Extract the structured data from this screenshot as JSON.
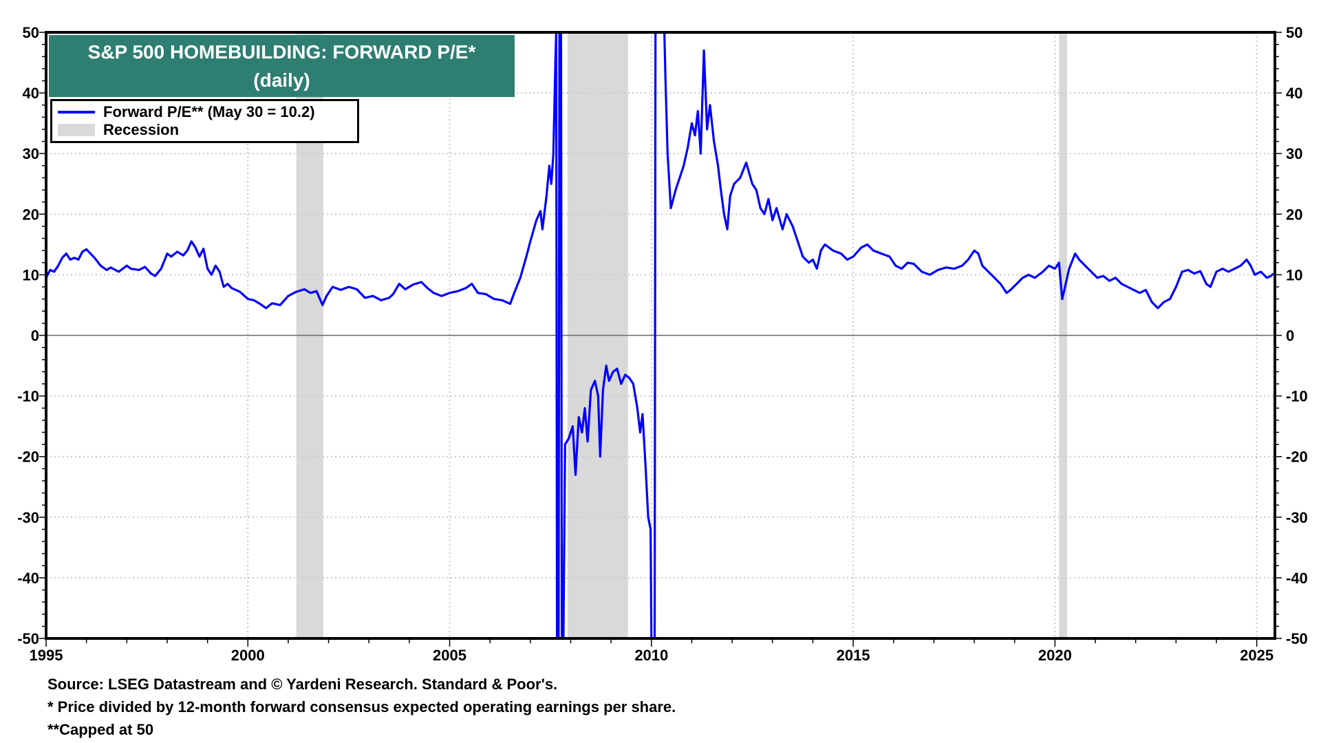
{
  "chart_data": {
    "type": "line",
    "title": "S&P 500 HOMEBUILDING: FORWARD P/E*",
    "subtitle": "(daily)",
    "xlabel": "",
    "ylabel": "",
    "xlim": [
      1995,
      2025.45
    ],
    "ylim": [
      -50,
      50
    ],
    "x_ticks": [
      1995,
      2000,
      2005,
      2010,
      2015,
      2020,
      2025
    ],
    "y_ticks": [
      50,
      40,
      30,
      20,
      10,
      0,
      -10,
      -20,
      -30,
      -40,
      -50
    ],
    "grid": true,
    "legend_position": "top-left",
    "legend": [
      "Forward P/E** (May 30 = 10.2)",
      "Recession"
    ],
    "recessions": [
      [
        2001.2,
        2001.87
      ],
      [
        2007.92,
        2009.42
      ],
      [
        2020.1,
        2020.3
      ]
    ],
    "series": [
      {
        "name": "Forward P/E** (May 30 = 10.2)",
        "color": "#0000ff",
        "points": [
          [
            1995.0,
            9.5
          ],
          [
            1995.1,
            10.8
          ],
          [
            1995.2,
            10.5
          ],
          [
            1995.3,
            11.5
          ],
          [
            1995.4,
            12.8
          ],
          [
            1995.5,
            13.5
          ],
          [
            1995.6,
            12.5
          ],
          [
            1995.7,
            12.8
          ],
          [
            1995.8,
            12.5
          ],
          [
            1995.9,
            13.8
          ],
          [
            1996.0,
            14.2
          ],
          [
            1996.1,
            13.5
          ],
          [
            1996.2,
            12.8
          ],
          [
            1996.35,
            11.5
          ],
          [
            1996.5,
            10.8
          ],
          [
            1996.6,
            11.2
          ],
          [
            1996.8,
            10.5
          ],
          [
            1997.0,
            11.5
          ],
          [
            1997.1,
            11.0
          ],
          [
            1997.3,
            10.8
          ],
          [
            1997.45,
            11.3
          ],
          [
            1997.6,
            10.2
          ],
          [
            1997.7,
            9.8
          ],
          [
            1997.85,
            11.0
          ],
          [
            1998.0,
            13.5
          ],
          [
            1998.1,
            13.0
          ],
          [
            1998.25,
            13.8
          ],
          [
            1998.4,
            13.2
          ],
          [
            1998.5,
            14.0
          ],
          [
            1998.6,
            15.5
          ],
          [
            1998.7,
            14.5
          ],
          [
            1998.8,
            13.0
          ],
          [
            1998.9,
            14.3
          ],
          [
            1999.0,
            11.0
          ],
          [
            1999.1,
            10.0
          ],
          [
            1999.2,
            11.5
          ],
          [
            1999.3,
            10.5
          ],
          [
            1999.4,
            8.0
          ],
          [
            1999.5,
            8.5
          ],
          [
            1999.6,
            7.8
          ],
          [
            1999.8,
            7.2
          ],
          [
            2000.0,
            6.0
          ],
          [
            2000.15,
            5.8
          ],
          [
            2000.3,
            5.2
          ],
          [
            2000.45,
            4.5
          ],
          [
            2000.6,
            5.3
          ],
          [
            2000.8,
            5.0
          ],
          [
            2001.0,
            6.5
          ],
          [
            2001.2,
            7.2
          ],
          [
            2001.4,
            7.6
          ],
          [
            2001.55,
            7.0
          ],
          [
            2001.7,
            7.3
          ],
          [
            2001.85,
            5.0
          ],
          [
            2001.95,
            6.5
          ],
          [
            2002.1,
            8.0
          ],
          [
            2002.3,
            7.5
          ],
          [
            2002.5,
            8.0
          ],
          [
            2002.7,
            7.6
          ],
          [
            2002.9,
            6.2
          ],
          [
            2003.1,
            6.5
          ],
          [
            2003.3,
            5.8
          ],
          [
            2003.5,
            6.2
          ],
          [
            2003.6,
            6.8
          ],
          [
            2003.75,
            8.5
          ],
          [
            2003.9,
            7.6
          ],
          [
            2004.1,
            8.4
          ],
          [
            2004.3,
            8.8
          ],
          [
            2004.45,
            7.8
          ],
          [
            2004.6,
            7.0
          ],
          [
            2004.8,
            6.5
          ],
          [
            2005.0,
            7.0
          ],
          [
            2005.2,
            7.3
          ],
          [
            2005.4,
            7.8
          ],
          [
            2005.55,
            8.5
          ],
          [
            2005.7,
            7.0
          ],
          [
            2005.9,
            6.8
          ],
          [
            2006.1,
            6.0
          ],
          [
            2006.3,
            5.8
          ],
          [
            2006.5,
            5.2
          ],
          [
            2006.6,
            7.0
          ],
          [
            2006.75,
            9.5
          ],
          [
            2006.9,
            13.0
          ],
          [
            2007.0,
            15.5
          ],
          [
            2007.15,
            19.0
          ],
          [
            2007.25,
            20.5
          ],
          [
            2007.3,
            17.5
          ],
          [
            2007.4,
            23.0
          ],
          [
            2007.47,
            28.0
          ],
          [
            2007.52,
            25.0
          ],
          [
            2007.57,
            30.0
          ],
          [
            2007.62,
            45.0
          ],
          [
            2007.64,
            50
          ],
          [
            2007.66,
            -50
          ],
          [
            2007.7,
            -50
          ],
          [
            2007.72,
            50
          ],
          [
            2007.76,
            50
          ],
          [
            2007.78,
            -50
          ],
          [
            2007.82,
            -50
          ],
          [
            2007.86,
            -18.0
          ],
          [
            2007.95,
            -17.0
          ],
          [
            2008.05,
            -15.0
          ],
          [
            2008.12,
            -23.0
          ],
          [
            2008.2,
            -13.5
          ],
          [
            2008.28,
            -16.0
          ],
          [
            2008.35,
            -12.0
          ],
          [
            2008.42,
            -17.5
          ],
          [
            2008.5,
            -9.0
          ],
          [
            2008.6,
            -7.5
          ],
          [
            2008.68,
            -10.0
          ],
          [
            2008.73,
            -20.0
          ],
          [
            2008.8,
            -9.0
          ],
          [
            2008.88,
            -5.0
          ],
          [
            2008.95,
            -7.5
          ],
          [
            2009.05,
            -6.0
          ],
          [
            2009.15,
            -5.5
          ],
          [
            2009.25,
            -8.0
          ],
          [
            2009.35,
            -6.5
          ],
          [
            2009.45,
            -7.0
          ],
          [
            2009.55,
            -8.0
          ],
          [
            2009.65,
            -12.0
          ],
          [
            2009.72,
            -16.0
          ],
          [
            2009.78,
            -13.0
          ],
          [
            2009.85,
            -21.0
          ],
          [
            2009.92,
            -30.0
          ],
          [
            2009.98,
            -32.0
          ],
          [
            2010.0,
            -50
          ],
          [
            2010.08,
            -50
          ],
          [
            2010.1,
            50
          ],
          [
            2010.32,
            50
          ],
          [
            2010.35,
            42.0
          ],
          [
            2010.4,
            30.0
          ],
          [
            2010.48,
            21.0
          ],
          [
            2010.6,
            24.0
          ],
          [
            2010.7,
            26.0
          ],
          [
            2010.8,
            28.0
          ],
          [
            2010.9,
            31.0
          ],
          [
            2011.0,
            35.0
          ],
          [
            2011.08,
            33.0
          ],
          [
            2011.15,
            37.0
          ],
          [
            2011.22,
            30.0
          ],
          [
            2011.3,
            47.0
          ],
          [
            2011.38,
            34.0
          ],
          [
            2011.45,
            38.0
          ],
          [
            2011.55,
            32.0
          ],
          [
            2011.65,
            28.0
          ],
          [
            2011.72,
            24.0
          ],
          [
            2011.8,
            20.0
          ],
          [
            2011.88,
            17.5
          ],
          [
            2011.95,
            23.0
          ],
          [
            2012.05,
            25.0
          ],
          [
            2012.2,
            26.0
          ],
          [
            2012.35,
            28.5
          ],
          [
            2012.5,
            25.0
          ],
          [
            2012.6,
            24.0
          ],
          [
            2012.7,
            21.0
          ],
          [
            2012.8,
            20.0
          ],
          [
            2012.9,
            22.5
          ],
          [
            2013.0,
            19.0
          ],
          [
            2013.1,
            21.0
          ],
          [
            2013.25,
            17.5
          ],
          [
            2013.35,
            20.0
          ],
          [
            2013.5,
            18.0
          ],
          [
            2013.6,
            16.0
          ],
          [
            2013.75,
            13.0
          ],
          [
            2013.9,
            12.0
          ],
          [
            2014.0,
            12.5
          ],
          [
            2014.1,
            11.0
          ],
          [
            2014.2,
            14.0
          ],
          [
            2014.3,
            15.0
          ],
          [
            2014.5,
            14.0
          ],
          [
            2014.7,
            13.5
          ],
          [
            2014.85,
            12.5
          ],
          [
            2015.0,
            13.0
          ],
          [
            2015.2,
            14.5
          ],
          [
            2015.35,
            15.0
          ],
          [
            2015.5,
            14.0
          ],
          [
            2015.7,
            13.5
          ],
          [
            2015.9,
            13.0
          ],
          [
            2016.05,
            11.5
          ],
          [
            2016.2,
            11.0
          ],
          [
            2016.35,
            12.0
          ],
          [
            2016.5,
            11.8
          ],
          [
            2016.7,
            10.5
          ],
          [
            2016.9,
            10.0
          ],
          [
            2017.1,
            10.8
          ],
          [
            2017.3,
            11.2
          ],
          [
            2017.5,
            11.0
          ],
          [
            2017.7,
            11.5
          ],
          [
            2017.85,
            12.5
          ],
          [
            2018.0,
            14.0
          ],
          [
            2018.1,
            13.5
          ],
          [
            2018.2,
            11.5
          ],
          [
            2018.35,
            10.5
          ],
          [
            2018.5,
            9.5
          ],
          [
            2018.65,
            8.5
          ],
          [
            2018.8,
            7.0
          ],
          [
            2018.9,
            7.5
          ],
          [
            2019.05,
            8.5
          ],
          [
            2019.2,
            9.5
          ],
          [
            2019.35,
            10.0
          ],
          [
            2019.5,
            9.5
          ],
          [
            2019.7,
            10.5
          ],
          [
            2019.85,
            11.5
          ],
          [
            2020.0,
            11.0
          ],
          [
            2020.1,
            12.0
          ],
          [
            2020.18,
            6.0
          ],
          [
            2020.25,
            8.0
          ],
          [
            2020.35,
            11.0
          ],
          [
            2020.5,
            13.5
          ],
          [
            2020.6,
            12.5
          ],
          [
            2020.75,
            11.5
          ],
          [
            2020.9,
            10.5
          ],
          [
            2021.05,
            9.5
          ],
          [
            2021.2,
            9.8
          ],
          [
            2021.35,
            9.0
          ],
          [
            2021.5,
            9.5
          ],
          [
            2021.65,
            8.5
          ],
          [
            2021.8,
            8.0
          ],
          [
            2021.95,
            7.5
          ],
          [
            2022.1,
            7.0
          ],
          [
            2022.25,
            7.5
          ],
          [
            2022.4,
            5.5
          ],
          [
            2022.55,
            4.5
          ],
          [
            2022.7,
            5.5
          ],
          [
            2022.85,
            6.0
          ],
          [
            2023.0,
            8.0
          ],
          [
            2023.15,
            10.5
          ],
          [
            2023.3,
            10.8
          ],
          [
            2023.45,
            10.2
          ],
          [
            2023.6,
            10.6
          ],
          [
            2023.75,
            8.5
          ],
          [
            2023.85,
            8.0
          ],
          [
            2024.0,
            10.5
          ],
          [
            2024.15,
            11.0
          ],
          [
            2024.3,
            10.5
          ],
          [
            2024.45,
            11.0
          ],
          [
            2024.6,
            11.5
          ],
          [
            2024.75,
            12.5
          ],
          [
            2024.85,
            11.5
          ],
          [
            2024.95,
            10.0
          ],
          [
            2025.1,
            10.5
          ],
          [
            2025.25,
            9.5
          ],
          [
            2025.35,
            9.8
          ],
          [
            2025.41,
            10.2
          ]
        ]
      }
    ]
  },
  "footer": {
    "source": "Source: LSEG Datastream and © Yardeni Research. Standard & Poor's.",
    "note1": "* Price divided by 12-month forward consensus expected operating earnings per share.",
    "note2": "**Capped at 50"
  }
}
